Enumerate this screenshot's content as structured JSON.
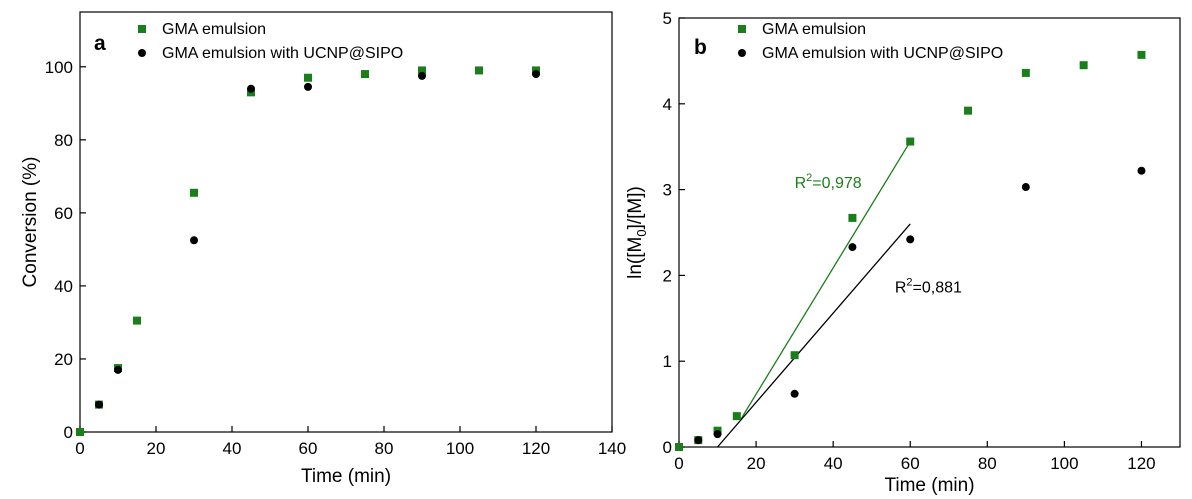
{
  "chart_data": [
    {
      "type": "scatter",
      "panel_label": "a",
      "xlabel": "Time (min)",
      "ylabel": "Conversion (%)",
      "xlim": [
        0,
        140
      ],
      "ylim": [
        0,
        115
      ],
      "xticks": [
        0,
        20,
        40,
        60,
        80,
        100,
        120,
        140
      ],
      "yticks": [
        0,
        20,
        40,
        60,
        80,
        100
      ],
      "legend_position": "top-left",
      "series": [
        {
          "name": "GMA emulsion",
          "marker": "square",
          "color": "#1a7f1a",
          "points": [
            [
              0,
              0
            ],
            [
              5,
              7.5
            ],
            [
              10,
              17.5
            ],
            [
              15,
              30.5
            ],
            [
              30,
              65.5
            ],
            [
              45,
              93
            ],
            [
              60,
              97
            ],
            [
              75,
              98
            ],
            [
              90,
              99
            ],
            [
              105,
              99
            ],
            [
              120,
              99
            ]
          ]
        },
        {
          "name": "GMA emulsion with UCNP@SIPO",
          "marker": "circle",
          "color": "#000000",
          "points": [
            [
              5,
              7.5
            ],
            [
              10,
              17
            ],
            [
              30,
              52.5
            ],
            [
              45,
              94
            ],
            [
              60,
              94.5
            ],
            [
              90,
              97.5
            ],
            [
              120,
              98
            ]
          ]
        }
      ]
    },
    {
      "type": "scatter",
      "panel_label": "b",
      "xlabel": "Time (min)",
      "ylabel_parts": [
        "ln([M",
        "0",
        "]/[M])"
      ],
      "xlim": [
        0,
        130
      ],
      "ylim": [
        0,
        5
      ],
      "xticks": [
        0,
        20,
        40,
        60,
        80,
        100,
        120
      ],
      "yticks": [
        0,
        1,
        2,
        3,
        4,
        5
      ],
      "legend_position": "top-left",
      "series": [
        {
          "name": "GMA emulsion",
          "marker": "square",
          "color": "#1a7f1a",
          "points": [
            [
              0,
              0
            ],
            [
              5,
              0.08
            ],
            [
              10,
              0.19
            ],
            [
              15,
              0.36
            ],
            [
              30,
              1.07
            ],
            [
              45,
              2.67
            ],
            [
              60,
              3.56
            ],
            [
              75,
              3.92
            ],
            [
              90,
              4.36
            ],
            [
              105,
              4.45
            ],
            [
              120,
              4.57
            ]
          ]
        },
        {
          "name": "GMA emulsion with UCNP@SIPO",
          "marker": "circle",
          "color": "#000000",
          "points": [
            [
              5,
              0.08
            ],
            [
              10,
              0.15
            ],
            [
              30,
              0.62
            ],
            [
              45,
              2.33
            ],
            [
              60,
              2.42
            ],
            [
              90,
              3.03
            ],
            [
              120,
              3.22
            ]
          ]
        }
      ],
      "fits": [
        {
          "color": "#1a7f1a",
          "x": [
            16,
            60
          ],
          "y": [
            0.32,
            3.56
          ],
          "label_parts": [
            "R",
            "2",
            "=0,978"
          ],
          "label_at": [
            30,
            3.02
          ]
        },
        {
          "color": "#000000",
          "x": [
            10,
            60
          ],
          "y": [
            0.0,
            2.6
          ],
          "label_parts": [
            "R",
            "2",
            "=0,881"
          ],
          "label_at": [
            56,
            1.8
          ]
        }
      ]
    }
  ]
}
